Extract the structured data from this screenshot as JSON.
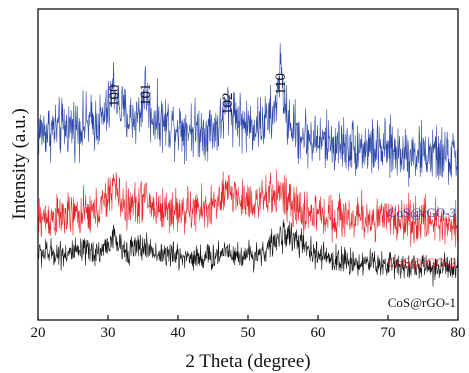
{
  "chart_data": {
    "type": "line",
    "title": "",
    "xlabel": "2 Theta (degree)",
    "ylabel": "Intensity (a.u.)",
    "xlim": [
      20,
      80
    ],
    "ylim": [
      0,
      1
    ],
    "x_ticks": [
      "20",
      "30",
      "40",
      "50",
      "60",
      "70",
      "80"
    ],
    "y_ticks_shown": false,
    "grid": false,
    "peak_labels": [
      {
        "text": "100",
        "x": 30.8
      },
      {
        "text": "101",
        "x": 35.3
      },
      {
        "text": "102",
        "x": 47.0
      },
      {
        "text": "110",
        "x": 54.6
      }
    ],
    "series": [
      {
        "name": "CoS@rGO-3",
        "color": "#2b46a8",
        "noise": 0.045,
        "x": [
          20,
          24,
          27,
          29,
          30.2,
          30.8,
          31.5,
          33,
          34.6,
          35.3,
          36,
          38,
          41,
          44,
          46,
          47,
          48,
          49.5,
          52,
          53.8,
          54.6,
          55.4,
          57,
          60,
          65,
          70,
          75,
          80
        ],
        "values": [
          0.605,
          0.62,
          0.63,
          0.64,
          0.68,
          0.76,
          0.69,
          0.645,
          0.66,
          0.755,
          0.66,
          0.635,
          0.62,
          0.61,
          0.625,
          0.69,
          0.67,
          0.625,
          0.63,
          0.66,
          0.815,
          0.66,
          0.6,
          0.575,
          0.56,
          0.545,
          0.535,
          0.52
        ]
      },
      {
        "name": "CoS@rGO-2",
        "color": "#e8252a",
        "noise": 0.035,
        "x": [
          20,
          25,
          28,
          29.8,
          30.8,
          31.8,
          33,
          35.3,
          36.5,
          40,
          44,
          46,
          47.5,
          49,
          52,
          54.6,
          56,
          58,
          62,
          68,
          74,
          80
        ],
        "values": [
          0.325,
          0.335,
          0.345,
          0.38,
          0.445,
          0.38,
          0.36,
          0.395,
          0.36,
          0.35,
          0.355,
          0.38,
          0.42,
          0.385,
          0.38,
          0.42,
          0.365,
          0.345,
          0.335,
          0.325,
          0.32,
          0.31
        ]
      },
      {
        "name": "CoS@rGO-1",
        "color": "#111111",
        "noise": 0.022,
        "x": [
          20,
          25,
          29,
          30.8,
          32,
          35.3,
          37,
          40,
          45,
          47,
          48.5,
          52,
          54,
          55.5,
          57,
          59,
          62,
          66,
          70,
          75,
          80
        ],
        "values": [
          0.215,
          0.215,
          0.22,
          0.265,
          0.225,
          0.235,
          0.215,
          0.205,
          0.2,
          0.23,
          0.205,
          0.215,
          0.255,
          0.28,
          0.255,
          0.215,
          0.195,
          0.185,
          0.18,
          0.17,
          0.165
        ]
      }
    ],
    "legend_placement": "inline, right side next to each curve"
  }
}
